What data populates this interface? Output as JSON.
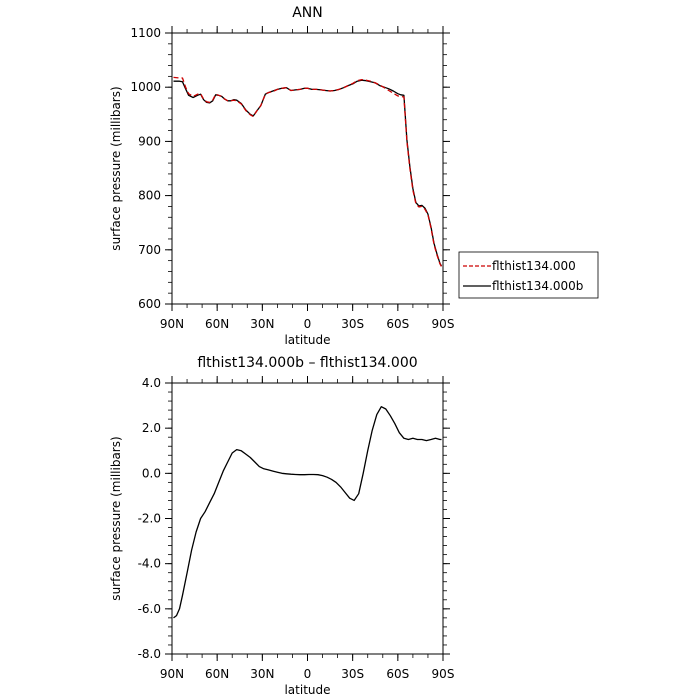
{
  "chart_data": [
    {
      "type": "line",
      "title": "ANN",
      "xlabel": "latitude",
      "ylabel": "surface pressure (millibars)",
      "xlim": [
        90,
        -90
      ],
      "ylim": [
        600,
        1100
      ],
      "x_ticks": [
        90,
        60,
        30,
        0,
        -30,
        -60,
        -90
      ],
      "x_tick_labels": [
        "90N",
        "60N",
        "30N",
        "0",
        "30S",
        "60S",
        "90S"
      ],
      "y_ticks": [
        600,
        700,
        800,
        900,
        1000,
        1100
      ],
      "y_tick_labels": [
        "600",
        "700",
        "800",
        "900",
        "1000",
        "1100"
      ],
      "legend_position": "right",
      "series": [
        {
          "name": "flthist134.000",
          "color": "#cc0000",
          "dash": "dashed",
          "x": [
            89,
            85,
            83,
            81,
            79,
            76,
            73,
            71,
            69,
            67,
            65,
            63,
            61,
            59,
            57,
            55,
            53,
            51,
            49,
            47,
            44,
            41,
            38,
            36,
            34,
            31,
            28,
            26,
            23,
            20,
            17,
            14,
            11,
            8,
            5,
            2,
            0,
            -3,
            -6,
            -9,
            -12,
            -15,
            -18,
            -21,
            -24,
            -27,
            -30,
            -33,
            -36,
            -39,
            -42,
            -45,
            -48,
            -51,
            -54,
            -57,
            -60,
            -62,
            -64,
            -66,
            -68,
            -70,
            -72,
            -74,
            -76,
            -78,
            -80,
            -82,
            -84,
            -86,
            -88,
            -89
          ],
          "y": [
            1018,
            1017,
            1017,
            1000,
            988,
            983,
            987,
            988,
            978,
            973,
            972,
            976,
            987,
            985,
            983,
            978,
            975,
            975,
            976,
            975,
            969,
            957,
            949,
            946,
            955,
            966,
            987,
            990,
            992,
            996,
            998,
            999,
            994,
            995,
            996,
            998,
            998,
            996,
            996,
            995,
            994,
            993,
            994,
            996,
            999,
            1003,
            1007,
            1012,
            1014,
            1013,
            1011,
            1008,
            1004,
            999,
            994,
            989,
            984,
            983,
            982,
            900,
            850,
            810,
            785,
            779,
            780,
            775,
            765,
            740,
            710,
            690,
            674,
            669
          ]
        },
        {
          "name": "flthist134.000b",
          "color": "#000000",
          "dash": "solid",
          "x": [
            89,
            85,
            83,
            81,
            79,
            76,
            73,
            71,
            69,
            67,
            65,
            63,
            61,
            59,
            57,
            55,
            53,
            51,
            49,
            47,
            44,
            41,
            38,
            36,
            34,
            31,
            28,
            26,
            23,
            20,
            17,
            14,
            11,
            8,
            5,
            2,
            0,
            -3,
            -6,
            -9,
            -12,
            -15,
            -18,
            -21,
            -24,
            -27,
            -30,
            -33,
            -36,
            -39,
            -42,
            -45,
            -48,
            -51,
            -54,
            -57,
            -60,
            -62,
            -64,
            -66,
            -68,
            -70,
            -72,
            -74,
            -76,
            -78,
            -80,
            -82,
            -84,
            -86,
            -88,
            -89
          ],
          "y": [
            1011,
            1011,
            1010,
            997,
            985,
            981,
            985,
            987,
            977,
            972,
            971,
            975,
            986,
            985,
            983,
            978,
            975,
            975,
            977,
            976,
            970,
            958,
            950,
            947,
            955,
            966,
            987,
            990,
            993,
            996,
            998,
            999,
            994,
            995,
            996,
            998,
            998,
            996,
            996,
            995,
            994,
            993,
            994,
            996,
            999,
            1003,
            1006,
            1011,
            1013,
            1012,
            1010,
            1008,
            1003,
            1000,
            997,
            993,
            988,
            986,
            985,
            903,
            853,
            813,
            787,
            781,
            782,
            777,
            766,
            742,
            712,
            692,
            675,
            670
          ]
        }
      ]
    },
    {
      "type": "line",
      "title": "flthist134.000b – flthist134.000",
      "xlabel": "latitude",
      "ylabel": "surface pressure (millibars)",
      "xlim": [
        90,
        -90
      ],
      "ylim": [
        -8,
        4
      ],
      "x_ticks": [
        90,
        60,
        30,
        0,
        -30,
        -60,
        -90
      ],
      "x_tick_labels": [
        "90N",
        "60N",
        "30N",
        "0",
        "30S",
        "60S",
        "90S"
      ],
      "y_ticks": [
        -8,
        -6,
        -4,
        -2,
        0,
        2,
        4
      ],
      "y_tick_labels": [
        "-8.0",
        "-6.0",
        "-4.0",
        "-2.0",
        "0.0",
        "2.0",
        "4.0"
      ],
      "series": [
        {
          "color": "#000000",
          "dash": "solid",
          "x": [
            89,
            87,
            85,
            83,
            80,
            77,
            74,
            71,
            68,
            65,
            62,
            59,
            56,
            53,
            50,
            47,
            44,
            41,
            38,
            35,
            32,
            29,
            26,
            23,
            20,
            17,
            14,
            11,
            8,
            5,
            2,
            -1,
            -4,
            -7,
            -10,
            -13,
            -16,
            -19,
            -22,
            -25,
            -28,
            -31,
            -34,
            -37,
            -40,
            -43,
            -46,
            -49,
            -52,
            -55,
            -58,
            -61,
            -64,
            -67,
            -70,
            -73,
            -76,
            -79,
            -82,
            -85,
            -88,
            -89
          ],
          "y": [
            -6.4,
            -6.3,
            -6.0,
            -5.4,
            -4.4,
            -3.4,
            -2.6,
            -2.0,
            -1.7,
            -1.3,
            -0.9,
            -0.4,
            0.1,
            0.5,
            0.9,
            1.05,
            1.0,
            0.85,
            0.7,
            0.5,
            0.3,
            0.2,
            0.15,
            0.1,
            0.05,
            0.0,
            -0.02,
            -0.04,
            -0.05,
            -0.06,
            -0.06,
            -0.05,
            -0.05,
            -0.06,
            -0.1,
            -0.17,
            -0.27,
            -0.4,
            -0.6,
            -0.85,
            -1.1,
            -1.2,
            -0.9,
            0.0,
            1.0,
            1.9,
            2.6,
            2.95,
            2.85,
            2.55,
            2.2,
            1.8,
            1.55,
            1.5,
            1.55,
            1.5,
            1.5,
            1.45,
            1.5,
            1.55,
            1.5,
            1.5
          ]
        }
      ]
    }
  ]
}
